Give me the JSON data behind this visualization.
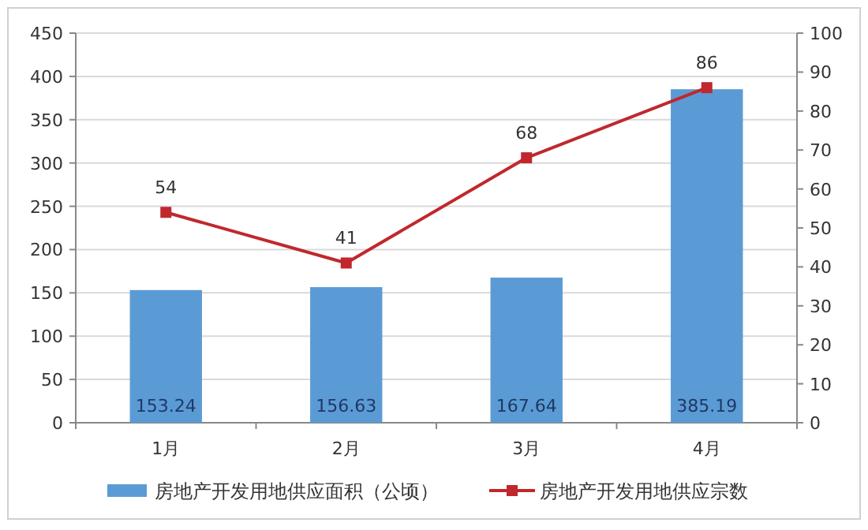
{
  "chart_data": {
    "type": "bar",
    "categories": [
      "1月",
      "2月",
      "3月",
      "4月"
    ],
    "series": [
      {
        "name": "房地产开发用地供应面积（公顷）",
        "color": "#5b9bd5",
        "values": [
          153.24,
          156.63,
          167.64,
          385.19
        ]
      },
      {
        "name": "房地产开发用地供应宗数",
        "type": "line",
        "axis": "y2",
        "color": "#c0282d",
        "marker": "square",
        "values": [
          54,
          41,
          68,
          86
        ]
      }
    ],
    "ylim": [
      0,
      450
    ],
    "yticks": [
      0,
      50,
      100,
      150,
      200,
      250,
      300,
      350,
      400,
      450
    ],
    "y2lim": [
      0,
      100
    ],
    "y2ticks": [
      0,
      10,
      20,
      30,
      40,
      50,
      60,
      70,
      80,
      90,
      100
    ],
    "grid": "y",
    "legend": "bottom",
    "data_labels": true
  }
}
